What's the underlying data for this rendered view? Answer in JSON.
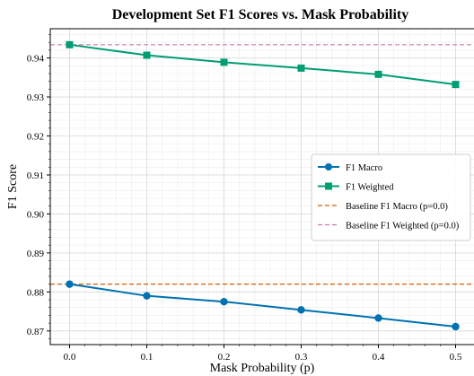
{
  "chart_data": {
    "type": "line",
    "title": "Development Set F1 Scores vs. Mask Probability",
    "xlabel": "Mask Probability (p)",
    "ylabel": "F1 Score",
    "xlim": [
      -0.025,
      0.525
    ],
    "ylim": [
      0.8665,
      0.9475
    ],
    "xticks": [
      0.0,
      0.1,
      0.2,
      0.3,
      0.4,
      0.5
    ],
    "xtick_labels": [
      "0.0",
      "0.1",
      "0.2",
      "0.3",
      "0.4",
      "0.5"
    ],
    "yticks": [
      0.87,
      0.88,
      0.89,
      0.9,
      0.91,
      0.92,
      0.93,
      0.94
    ],
    "ytick_labels": [
      "0.87",
      "0.88",
      "0.89",
      "0.90",
      "0.91",
      "0.92",
      "0.93",
      "0.94"
    ],
    "grid": true,
    "legend_position": "center-right",
    "x": [
      0.0,
      0.1,
      0.2,
      0.3,
      0.4,
      0.5
    ],
    "series": [
      {
        "name": "F1 Macro",
        "values": [
          0.882,
          0.879,
          0.8775,
          0.8754,
          0.8733,
          0.8711
        ],
        "color": "#0072b2",
        "marker": "circle"
      },
      {
        "name": "F1 Weighted",
        "values": [
          0.9434,
          0.9407,
          0.9389,
          0.9374,
          0.9358,
          0.9332
        ],
        "color": "#009e73",
        "marker": "square"
      }
    ],
    "baselines": [
      {
        "name": "Baseline F1 Macro (p=0.0)",
        "value": 0.882,
        "color": "#d55e00"
      },
      {
        "name": "Baseline F1 Weighted (p=0.0)",
        "value": 0.9434,
        "color": "#cc79a7"
      }
    ]
  }
}
